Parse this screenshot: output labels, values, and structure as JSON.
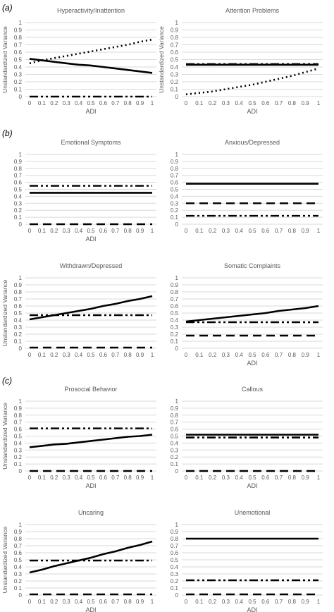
{
  "panel_labels": [
    "(a)",
    "(b)",
    "(c)"
  ],
  "styles": {
    "grid_color": "#d9d9d9",
    "line_color": "#000000",
    "text_color": "#595959"
  },
  "chart_data": [
    {
      "type": "line",
      "title": "Hyperactivity/Inattention",
      "xlabel": "ADI",
      "ylabel": "Unstandardized Variance",
      "x": [
        "0",
        "0.1",
        "0.2",
        "0.3",
        "0.4",
        "0.5",
        "0.6",
        "0.7",
        "0.8",
        "0.9",
        "1"
      ],
      "ylim": [
        0,
        1
      ],
      "yticks": [
        "0",
        "0.1",
        "0.2",
        "0.3",
        "0.4",
        "0.5",
        "0.6",
        "0.7",
        "0.8",
        "0.9",
        "1"
      ],
      "grid": true,
      "series": [
        {
          "style": "solid",
          "values": [
            0.51,
            0.49,
            0.47,
            0.45,
            0.43,
            0.42,
            0.4,
            0.38,
            0.36,
            0.34,
            0.32
          ]
        },
        {
          "style": "dotted",
          "values": [
            0.45,
            0.49,
            0.52,
            0.55,
            0.58,
            0.61,
            0.64,
            0.67,
            0.7,
            0.74,
            0.77
          ]
        },
        {
          "style": "dashdot",
          "values": [
            0,
            0,
            0,
            0,
            0,
            0,
            0,
            0,
            0,
            0,
            0
          ]
        }
      ]
    },
    {
      "type": "line",
      "title": "Attention Problems",
      "xlabel": "ADI",
      "ylabel": "Unstandardized Variance",
      "x": [
        "0",
        "0.1",
        "0.2",
        "0.3",
        "0.4",
        "0.5",
        "0.6",
        "0.7",
        "0.8",
        "0.9",
        "1"
      ],
      "ylim": [
        0,
        1
      ],
      "yticks": [
        "0",
        "0.1",
        "0.2",
        "0.3",
        "0.4",
        "0.5",
        "0.6",
        "0.7",
        "0.8",
        "0.9",
        "1"
      ],
      "grid": true,
      "series": [
        {
          "style": "solid",
          "values": [
            0.43,
            0.43,
            0.43,
            0.43,
            0.43,
            0.43,
            0.43,
            0.43,
            0.43,
            0.43,
            0.43
          ]
        },
        {
          "style": "dashdot",
          "values": [
            0.44,
            0.44,
            0.44,
            0.44,
            0.44,
            0.44,
            0.44,
            0.44,
            0.44,
            0.44,
            0.44
          ]
        },
        {
          "style": "dotted",
          "values": [
            0.03,
            0.05,
            0.07,
            0.1,
            0.13,
            0.16,
            0.2,
            0.24,
            0.28,
            0.33,
            0.38
          ]
        }
      ]
    },
    {
      "type": "line",
      "title": "Emotional Symptoms",
      "xlabel": "ADI",
      "ylabel": "",
      "x": [
        "0",
        "0.1",
        "0.2",
        "0.3",
        "0.4",
        "0.5",
        "0.6",
        "0.7",
        "0.8",
        "0.9",
        "1"
      ],
      "ylim": [
        0,
        1
      ],
      "yticks": [
        "0",
        "0.1",
        "0.2",
        "0.3",
        "0.4",
        "0.5",
        "0.6",
        "0.7",
        "0.8",
        "0.9",
        "1"
      ],
      "grid": true,
      "series": [
        {
          "style": "dashdot",
          "values": [
            0.55,
            0.55,
            0.55,
            0.55,
            0.55,
            0.55,
            0.55,
            0.55,
            0.55,
            0.55,
            0.55
          ]
        },
        {
          "style": "solid",
          "values": [
            0.45,
            0.45,
            0.45,
            0.45,
            0.45,
            0.45,
            0.45,
            0.45,
            0.45,
            0.45,
            0.45
          ]
        },
        {
          "style": "dashed",
          "values": [
            0,
            0,
            0,
            0,
            0,
            0,
            0,
            0,
            0,
            0,
            0
          ]
        }
      ]
    },
    {
      "type": "line",
      "title": "Anxious/Depressed",
      "xlabel": "",
      "ylabel": "",
      "x": [
        "0",
        "0.1",
        "0.2",
        "0.3",
        "0.4",
        "0.5",
        "0.6",
        "0.7",
        "0.8",
        "0.9",
        "1"
      ],
      "ylim": [
        0,
        1
      ],
      "yticks": [
        "0",
        "0.1",
        "0.2",
        "0.3",
        "0.4",
        "0.5",
        "0.6",
        "0.7",
        "0.8",
        "0.9",
        "1"
      ],
      "grid": true,
      "series": [
        {
          "style": "solid",
          "values": [
            0.58,
            0.58,
            0.58,
            0.58,
            0.58,
            0.58,
            0.58,
            0.58,
            0.58,
            0.58,
            0.58
          ]
        },
        {
          "style": "dashed",
          "values": [
            0.3,
            0.3,
            0.3,
            0.3,
            0.3,
            0.3,
            0.3,
            0.3,
            0.3,
            0.3,
            0.3
          ]
        },
        {
          "style": "dashdot",
          "values": [
            0.12,
            0.12,
            0.12,
            0.12,
            0.12,
            0.12,
            0.12,
            0.12,
            0.12,
            0.12,
            0.12
          ]
        }
      ]
    },
    {
      "type": "line",
      "title": "Withdrawn/Depressed",
      "xlabel": "",
      "ylabel": "Unstandardized Variance",
      "x": [
        "0",
        "0.1",
        "0.2",
        "0.3",
        "0.4",
        "0.5",
        "0.6",
        "0.7",
        "0.8",
        "0.9",
        "1"
      ],
      "ylim": [
        0,
        1
      ],
      "yticks": [
        "0",
        "0.1",
        "0.2",
        "0.3",
        "0.4",
        "0.5",
        "0.6",
        "0.7",
        "0.8",
        "0.9",
        "1"
      ],
      "grid": true,
      "series": [
        {
          "style": "solid",
          "values": [
            0.41,
            0.44,
            0.47,
            0.5,
            0.53,
            0.56,
            0.6,
            0.63,
            0.67,
            0.7,
            0.74
          ]
        },
        {
          "style": "dashdot",
          "values": [
            0.47,
            0.47,
            0.47,
            0.47,
            0.47,
            0.47,
            0.47,
            0.47,
            0.47,
            0.47,
            0.47
          ]
        },
        {
          "style": "dashed",
          "values": [
            0.01,
            0.01,
            0.01,
            0.01,
            0.01,
            0.01,
            0.01,
            0.01,
            0.01,
            0.01,
            0.01
          ]
        }
      ]
    },
    {
      "type": "line",
      "title": "Somatic Complaints",
      "xlabel": "ADI",
      "ylabel": "",
      "x": [
        "0",
        "0.1",
        "0.2",
        "0.3",
        "0.4",
        "0.5",
        "0.6",
        "0.7",
        "0.8",
        "0.9",
        "1"
      ],
      "ylim": [
        0,
        1
      ],
      "yticks": [
        "0",
        "0.1",
        "0.2",
        "0.3",
        "0.4",
        "0.5",
        "0.6",
        "0.7",
        "0.8",
        "0.9",
        "1"
      ],
      "grid": true,
      "series": [
        {
          "style": "solid",
          "values": [
            0.38,
            0.4,
            0.42,
            0.44,
            0.46,
            0.48,
            0.5,
            0.53,
            0.55,
            0.57,
            0.6
          ]
        },
        {
          "style": "dashdot",
          "values": [
            0.37,
            0.37,
            0.37,
            0.37,
            0.37,
            0.37,
            0.37,
            0.37,
            0.37,
            0.37,
            0.37
          ]
        },
        {
          "style": "dashed",
          "values": [
            0.18,
            0.18,
            0.18,
            0.18,
            0.18,
            0.18,
            0.18,
            0.18,
            0.18,
            0.18,
            0.18
          ]
        }
      ]
    },
    {
      "type": "line",
      "title": "Prosocial Behavior",
      "xlabel": "ADI",
      "ylabel": "Unstandardized Variance",
      "x": [
        "0",
        "0.1",
        "0.2",
        "0.3",
        "0.4",
        "0.5",
        "0.6",
        "0.7",
        "0.8",
        "0.9",
        "1"
      ],
      "ylim": [
        0,
        1
      ],
      "yticks": [
        "0",
        "0.1",
        "0.2",
        "0.3",
        "0.4",
        "0.5",
        "0.6",
        "0.7",
        "0.8",
        "0.9",
        "1"
      ],
      "grid": true,
      "series": [
        {
          "style": "dashdot",
          "values": [
            0.61,
            0.61,
            0.61,
            0.61,
            0.61,
            0.61,
            0.61,
            0.61,
            0.61,
            0.61,
            0.61
          ]
        },
        {
          "style": "solid",
          "values": [
            0.34,
            0.36,
            0.38,
            0.39,
            0.41,
            0.43,
            0.45,
            0.47,
            0.49,
            0.5,
            0.52
          ]
        },
        {
          "style": "dashed",
          "values": [
            0,
            0,
            0,
            0,
            0,
            0,
            0,
            0,
            0,
            0,
            0
          ]
        }
      ]
    },
    {
      "type": "line",
      "title": "Callous",
      "xlabel": "ADI",
      "ylabel": "",
      "x": [
        "0",
        "0.1",
        "0.2",
        "0.3",
        "0.4",
        "0.5",
        "0.6",
        "0.7",
        "0.8",
        "0.9",
        "1"
      ],
      "ylim": [
        0,
        1
      ],
      "yticks": [
        "0",
        "0.1",
        "0.2",
        "0.3",
        "0.4",
        "0.5",
        "0.6",
        "0.7",
        "0.8",
        "0.9",
        "1"
      ],
      "grid": true,
      "series": [
        {
          "style": "solid",
          "values": [
            0.52,
            0.52,
            0.52,
            0.52,
            0.52,
            0.52,
            0.52,
            0.52,
            0.52,
            0.52,
            0.52
          ]
        },
        {
          "style": "dashdot",
          "values": [
            0.48,
            0.48,
            0.48,
            0.48,
            0.48,
            0.48,
            0.48,
            0.48,
            0.48,
            0.48,
            0.48
          ]
        },
        {
          "style": "dashed",
          "values": [
            0,
            0,
            0,
            0,
            0,
            0,
            0,
            0,
            0,
            0,
            0
          ]
        }
      ]
    },
    {
      "type": "line",
      "title": "Uncaring",
      "xlabel": "ADI",
      "ylabel": "Unstandardized Variance",
      "x": [
        "0",
        "0.1",
        "0.2",
        "0.3",
        "0.4",
        "0.5",
        "0.6",
        "0.7",
        "0.8",
        "0.9",
        "1"
      ],
      "ylim": [
        0,
        1
      ],
      "yticks": [
        "0",
        "0.1",
        "0.2",
        "0.3",
        "0.4",
        "0.5",
        "0.6",
        "0.7",
        "0.8",
        "0.9",
        "1"
      ],
      "grid": true,
      "series": [
        {
          "style": "solid",
          "values": [
            0.32,
            0.36,
            0.41,
            0.45,
            0.49,
            0.53,
            0.58,
            0.62,
            0.67,
            0.71,
            0.76
          ]
        },
        {
          "style": "dashdot",
          "values": [
            0.49,
            0.49,
            0.49,
            0.49,
            0.49,
            0.49,
            0.49,
            0.49,
            0.49,
            0.49,
            0.49
          ]
        },
        {
          "style": "dashed",
          "values": [
            0.01,
            0.01,
            0.01,
            0.01,
            0.01,
            0.01,
            0.01,
            0.01,
            0.01,
            0.01,
            0.01
          ]
        }
      ]
    },
    {
      "type": "line",
      "title": "Unemotional",
      "xlabel": "ADI",
      "ylabel": "",
      "x": [
        "0",
        "0.1",
        "0.2",
        "0.3",
        "0.4",
        "0.5",
        "0.6",
        "0.7",
        "0.8",
        "0.9",
        "1"
      ],
      "ylim": [
        0,
        1
      ],
      "yticks": [
        "0",
        "0.1",
        "0.2",
        "0.3",
        "0.4",
        "0.5",
        "0.6",
        "0.7",
        "0.8",
        "0.9",
        "1"
      ],
      "grid": true,
      "series": [
        {
          "style": "solid",
          "values": [
            0.8,
            0.8,
            0.8,
            0.8,
            0.8,
            0.8,
            0.8,
            0.8,
            0.8,
            0.8,
            0.8
          ]
        },
        {
          "style": "dashdot",
          "values": [
            0.21,
            0.21,
            0.21,
            0.21,
            0.21,
            0.21,
            0.21,
            0.21,
            0.21,
            0.21,
            0.21
          ]
        },
        {
          "style": "dashed",
          "values": [
            0.01,
            0.01,
            0.01,
            0.01,
            0.01,
            0.01,
            0.01,
            0.01,
            0.01,
            0.01,
            0.01
          ]
        }
      ]
    }
  ]
}
